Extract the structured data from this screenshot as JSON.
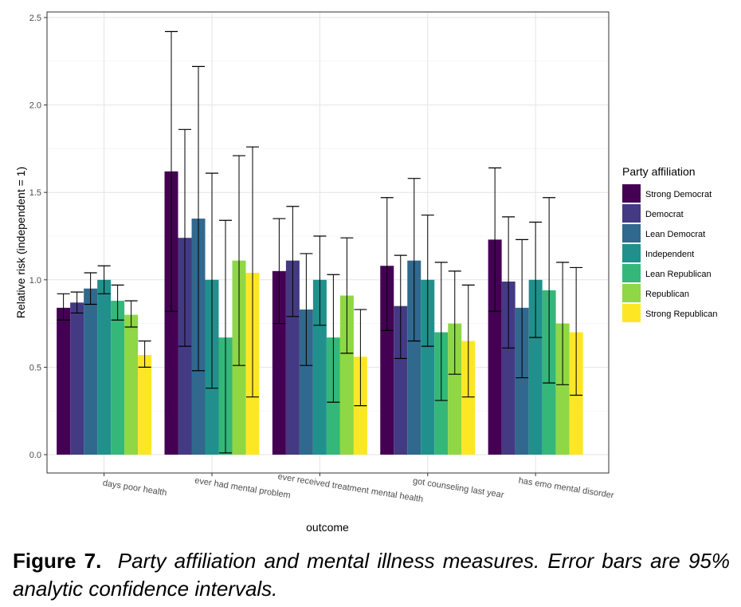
{
  "chart_data": {
    "type": "bar",
    "title": "",
    "xlabel": "outcome",
    "ylabel": "Relative risk (independent = 1)",
    "ylim": [
      0,
      2.55
    ],
    "yticks": [
      "0.0",
      "0.5",
      "1.0",
      "1.5",
      "2.0",
      "2.5"
    ],
    "grid": true,
    "legend_title": "Party affiliation",
    "legend_position": "right",
    "categories": [
      "days poor health",
      "ever had mental problem",
      "ever received treatment mental health",
      "got counseling last year",
      "has emo mental disorder"
    ],
    "series": [
      {
        "name": "Strong Democrat",
        "color": "#440154",
        "values": [
          0.84,
          1.62,
          1.05,
          1.08,
          1.23
        ],
        "ci_low": [
          0.77,
          0.82,
          0.75,
          0.71,
          0.82
        ],
        "ci_high": [
          0.92,
          2.42,
          1.35,
          1.47,
          1.64
        ]
      },
      {
        "name": "Democrat",
        "color": "#443A83",
        "values": [
          0.87,
          1.24,
          1.11,
          0.85,
          0.99
        ],
        "ci_low": [
          0.81,
          0.62,
          0.79,
          0.55,
          0.61
        ],
        "ci_high": [
          0.93,
          1.86,
          1.42,
          1.14,
          1.36
        ]
      },
      {
        "name": "Lean Democrat",
        "color": "#31688E",
        "values": [
          0.95,
          1.35,
          0.83,
          1.11,
          0.84
        ],
        "ci_low": [
          0.86,
          0.48,
          0.51,
          0.65,
          0.44
        ],
        "ci_high": [
          1.04,
          2.22,
          1.15,
          1.58,
          1.23
        ]
      },
      {
        "name": "Independent",
        "color": "#21908C",
        "values": [
          1.0,
          1.0,
          1.0,
          1.0,
          1.0
        ],
        "ci_low": [
          0.92,
          0.38,
          0.74,
          0.62,
          0.67
        ],
        "ci_high": [
          1.08,
          1.61,
          1.25,
          1.37,
          1.33
        ]
      },
      {
        "name": "Lean Republican",
        "color": "#35B779",
        "values": [
          0.88,
          0.67,
          0.67,
          0.7,
          0.94
        ],
        "ci_low": [
          0.77,
          0.01,
          0.3,
          0.31,
          0.41
        ],
        "ci_high": [
          0.97,
          1.34,
          1.03,
          1.1,
          1.47
        ]
      },
      {
        "name": "Republican",
        "color": "#8FD744",
        "values": [
          0.8,
          1.11,
          0.91,
          0.75,
          0.75
        ],
        "ci_low": [
          0.73,
          0.51,
          0.58,
          0.46,
          0.4
        ],
        "ci_high": [
          0.88,
          1.71,
          1.24,
          1.05,
          1.1
        ]
      },
      {
        "name": "Strong Republican",
        "color": "#FDE725",
        "values": [
          0.57,
          1.04,
          0.56,
          0.65,
          0.7
        ],
        "ci_low": [
          0.5,
          0.33,
          0.28,
          0.33,
          0.34
        ],
        "ci_high": [
          0.65,
          1.76,
          0.83,
          0.97,
          1.07
        ]
      }
    ]
  },
  "caption": {
    "label": "Figure 7.",
    "text": "Party affiliation and mental illness measures. Error bars are 95% analytic confidence intervals."
  }
}
